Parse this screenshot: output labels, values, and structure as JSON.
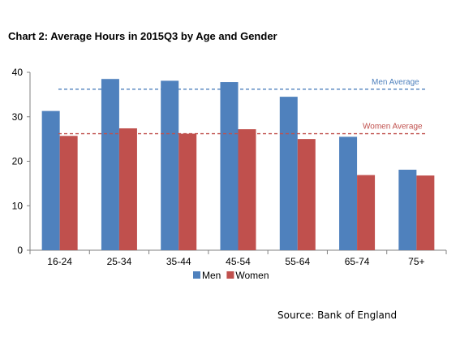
{
  "chart_data": {
    "type": "bar",
    "title": "Chart 2: Average Hours in 2015Q3 by Age and Gender",
    "categories": [
      "16-24",
      "25-34",
      "35-44",
      "45-54",
      "55-64",
      "65-74",
      "75+"
    ],
    "series": [
      {
        "name": "Men",
        "values": [
          31.3,
          38.5,
          38.1,
          37.8,
          34.5,
          25.5,
          18.1
        ],
        "color": "#4f81bd"
      },
      {
        "name": "Women",
        "values": [
          25.7,
          27.4,
          26.2,
          27.2,
          25.0,
          16.9,
          16.8
        ],
        "color": "#c0504d"
      }
    ],
    "ylim": [
      0,
      40
    ],
    "yticks": [
      0,
      10,
      20,
      30,
      40
    ],
    "reference_lines": [
      {
        "label": "Men Average",
        "value": 36.2,
        "color": "#4f81bd"
      },
      {
        "label": "Women Average",
        "value": 26.2,
        "color": "#c0504d"
      }
    ],
    "legend_position": "bottom",
    "grid": false
  },
  "source_text": "Source: Bank of England"
}
